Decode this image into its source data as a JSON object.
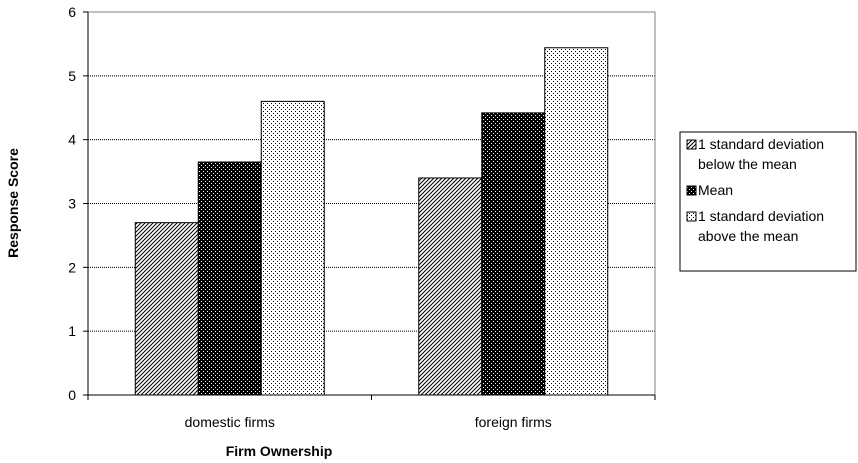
{
  "chart_data": {
    "type": "bar",
    "title": "",
    "xlabel": "Firm Ownership",
    "ylabel": "Response Score",
    "categories": [
      "domestic firms",
      "foreign firms"
    ],
    "ylim": [
      0,
      6
    ],
    "yticks": [
      "0",
      "1",
      "2",
      "3",
      "4",
      "5",
      "6"
    ],
    "grid": true,
    "legend_position": "right",
    "series": [
      {
        "name": "1 standard deviation below the mean",
        "legend_lines": [
          "1 standard deviation",
          "below the mean"
        ],
        "pattern": "diagonal-hatch",
        "values": [
          2.7,
          3.4
        ]
      },
      {
        "name": "Mean",
        "legend_lines": [
          "Mean"
        ],
        "pattern": "dark-dots",
        "values": [
          3.65,
          4.42
        ]
      },
      {
        "name": "1 standard deviation above the mean",
        "legend_lines": [
          "1 standard deviation",
          "above the mean"
        ],
        "pattern": "light-dots",
        "values": [
          4.6,
          5.44
        ]
      }
    ]
  }
}
